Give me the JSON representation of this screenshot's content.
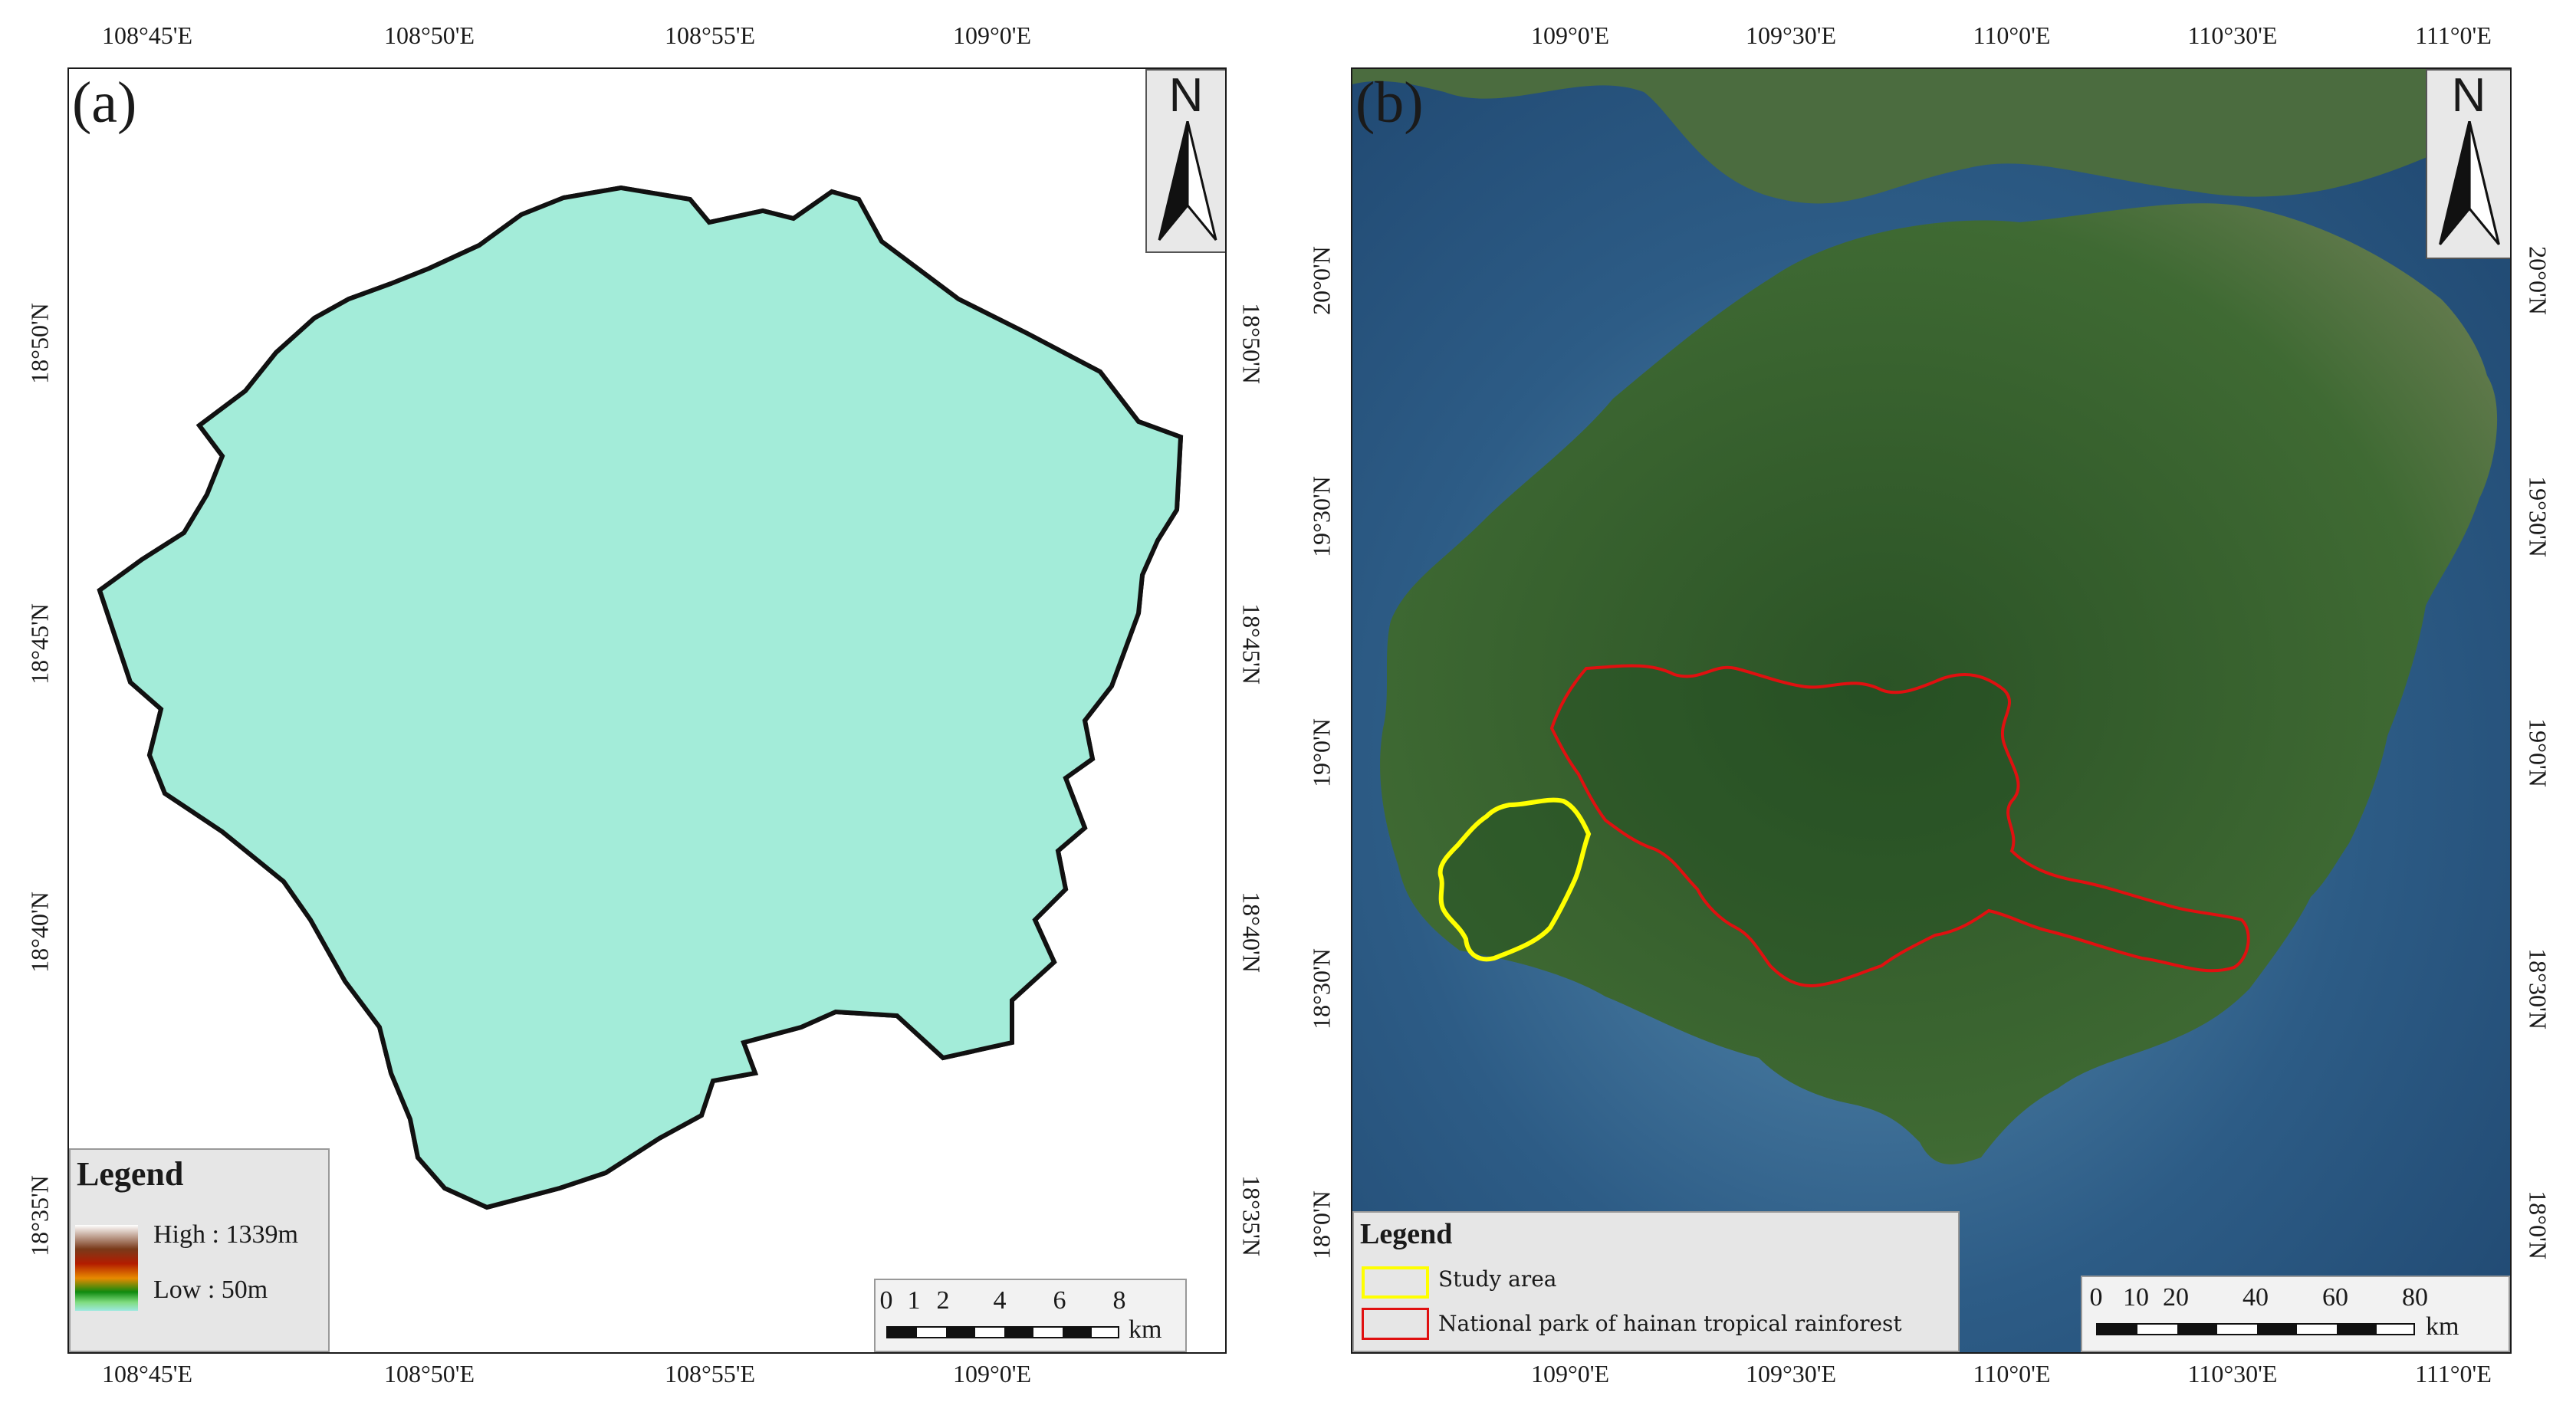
{
  "panel_a": {
    "label": "(a)",
    "north": "N",
    "top_lon_ticks": [
      "108°45'E",
      "108°50'E",
      "108°55'E",
      "109°0'E"
    ],
    "bottom_lon_ticks": [
      "108°45'E",
      "108°50'E",
      "108°55'E",
      "109°0'E"
    ],
    "left_lat_ticks": [
      "18°50'N",
      "18°45'N",
      "18°40'N",
      "18°35'N"
    ],
    "right_lat_ticks": [
      "18°50'N",
      "18°45'N",
      "18°40'N",
      "18°35'N"
    ],
    "legend": {
      "title": "Legend",
      "high": "High : 1339m",
      "low": "Low : 50m",
      "ramp_colors": [
        "#ffffff",
        "#7a3a1a",
        "#b31c00",
        "#e88a00",
        "#0f8a0f",
        "#7fdc7f",
        "#9ee8e0"
      ]
    },
    "scale": {
      "numbers": [
        "0",
        "1",
        "2",
        "4",
        "6",
        "8"
      ],
      "unit": "km"
    },
    "elevation_colors": {
      "low": "#a3ecd9",
      "green_light": "#7fdc6a",
      "green": "#139a13",
      "orange": "#f0a000",
      "red": "#c42800",
      "brown": "#7a3a1a",
      "peak": "#f2f2f2"
    }
  },
  "panel_b": {
    "label": "(b)",
    "north": "N",
    "top_lon_ticks": [
      "109°0'E",
      "109°30'E",
      "110°0'E",
      "110°30'E",
      "111°0'E"
    ],
    "bottom_lon_ticks": [
      "109°0'E",
      "109°30'E",
      "110°0'E",
      "110°30'E",
      "111°0'E"
    ],
    "left_lat_ticks": [
      "20°0'N",
      "19°30'N",
      "19°0'N",
      "18°30'N",
      "18°0'N"
    ],
    "right_lat_ticks": [
      "20°0'N",
      "19°30'N",
      "19°0'N",
      "18°30'N",
      "18°0'N"
    ],
    "legend": {
      "title": "Legend",
      "items": [
        {
          "label": "Study area",
          "color": "#ffff00"
        },
        {
          "label": "National park of hainan tropical rainforest",
          "color": "#e01010"
        }
      ]
    },
    "scale": {
      "numbers": [
        "0",
        "10",
        "20",
        "40",
        "60",
        "80"
      ],
      "unit": "km"
    },
    "map_colors": {
      "sea": "#2d5c86",
      "sea_shallow": "#5a8fb2",
      "land": "#3f6a33",
      "land_dark": "#2b5326"
    }
  }
}
